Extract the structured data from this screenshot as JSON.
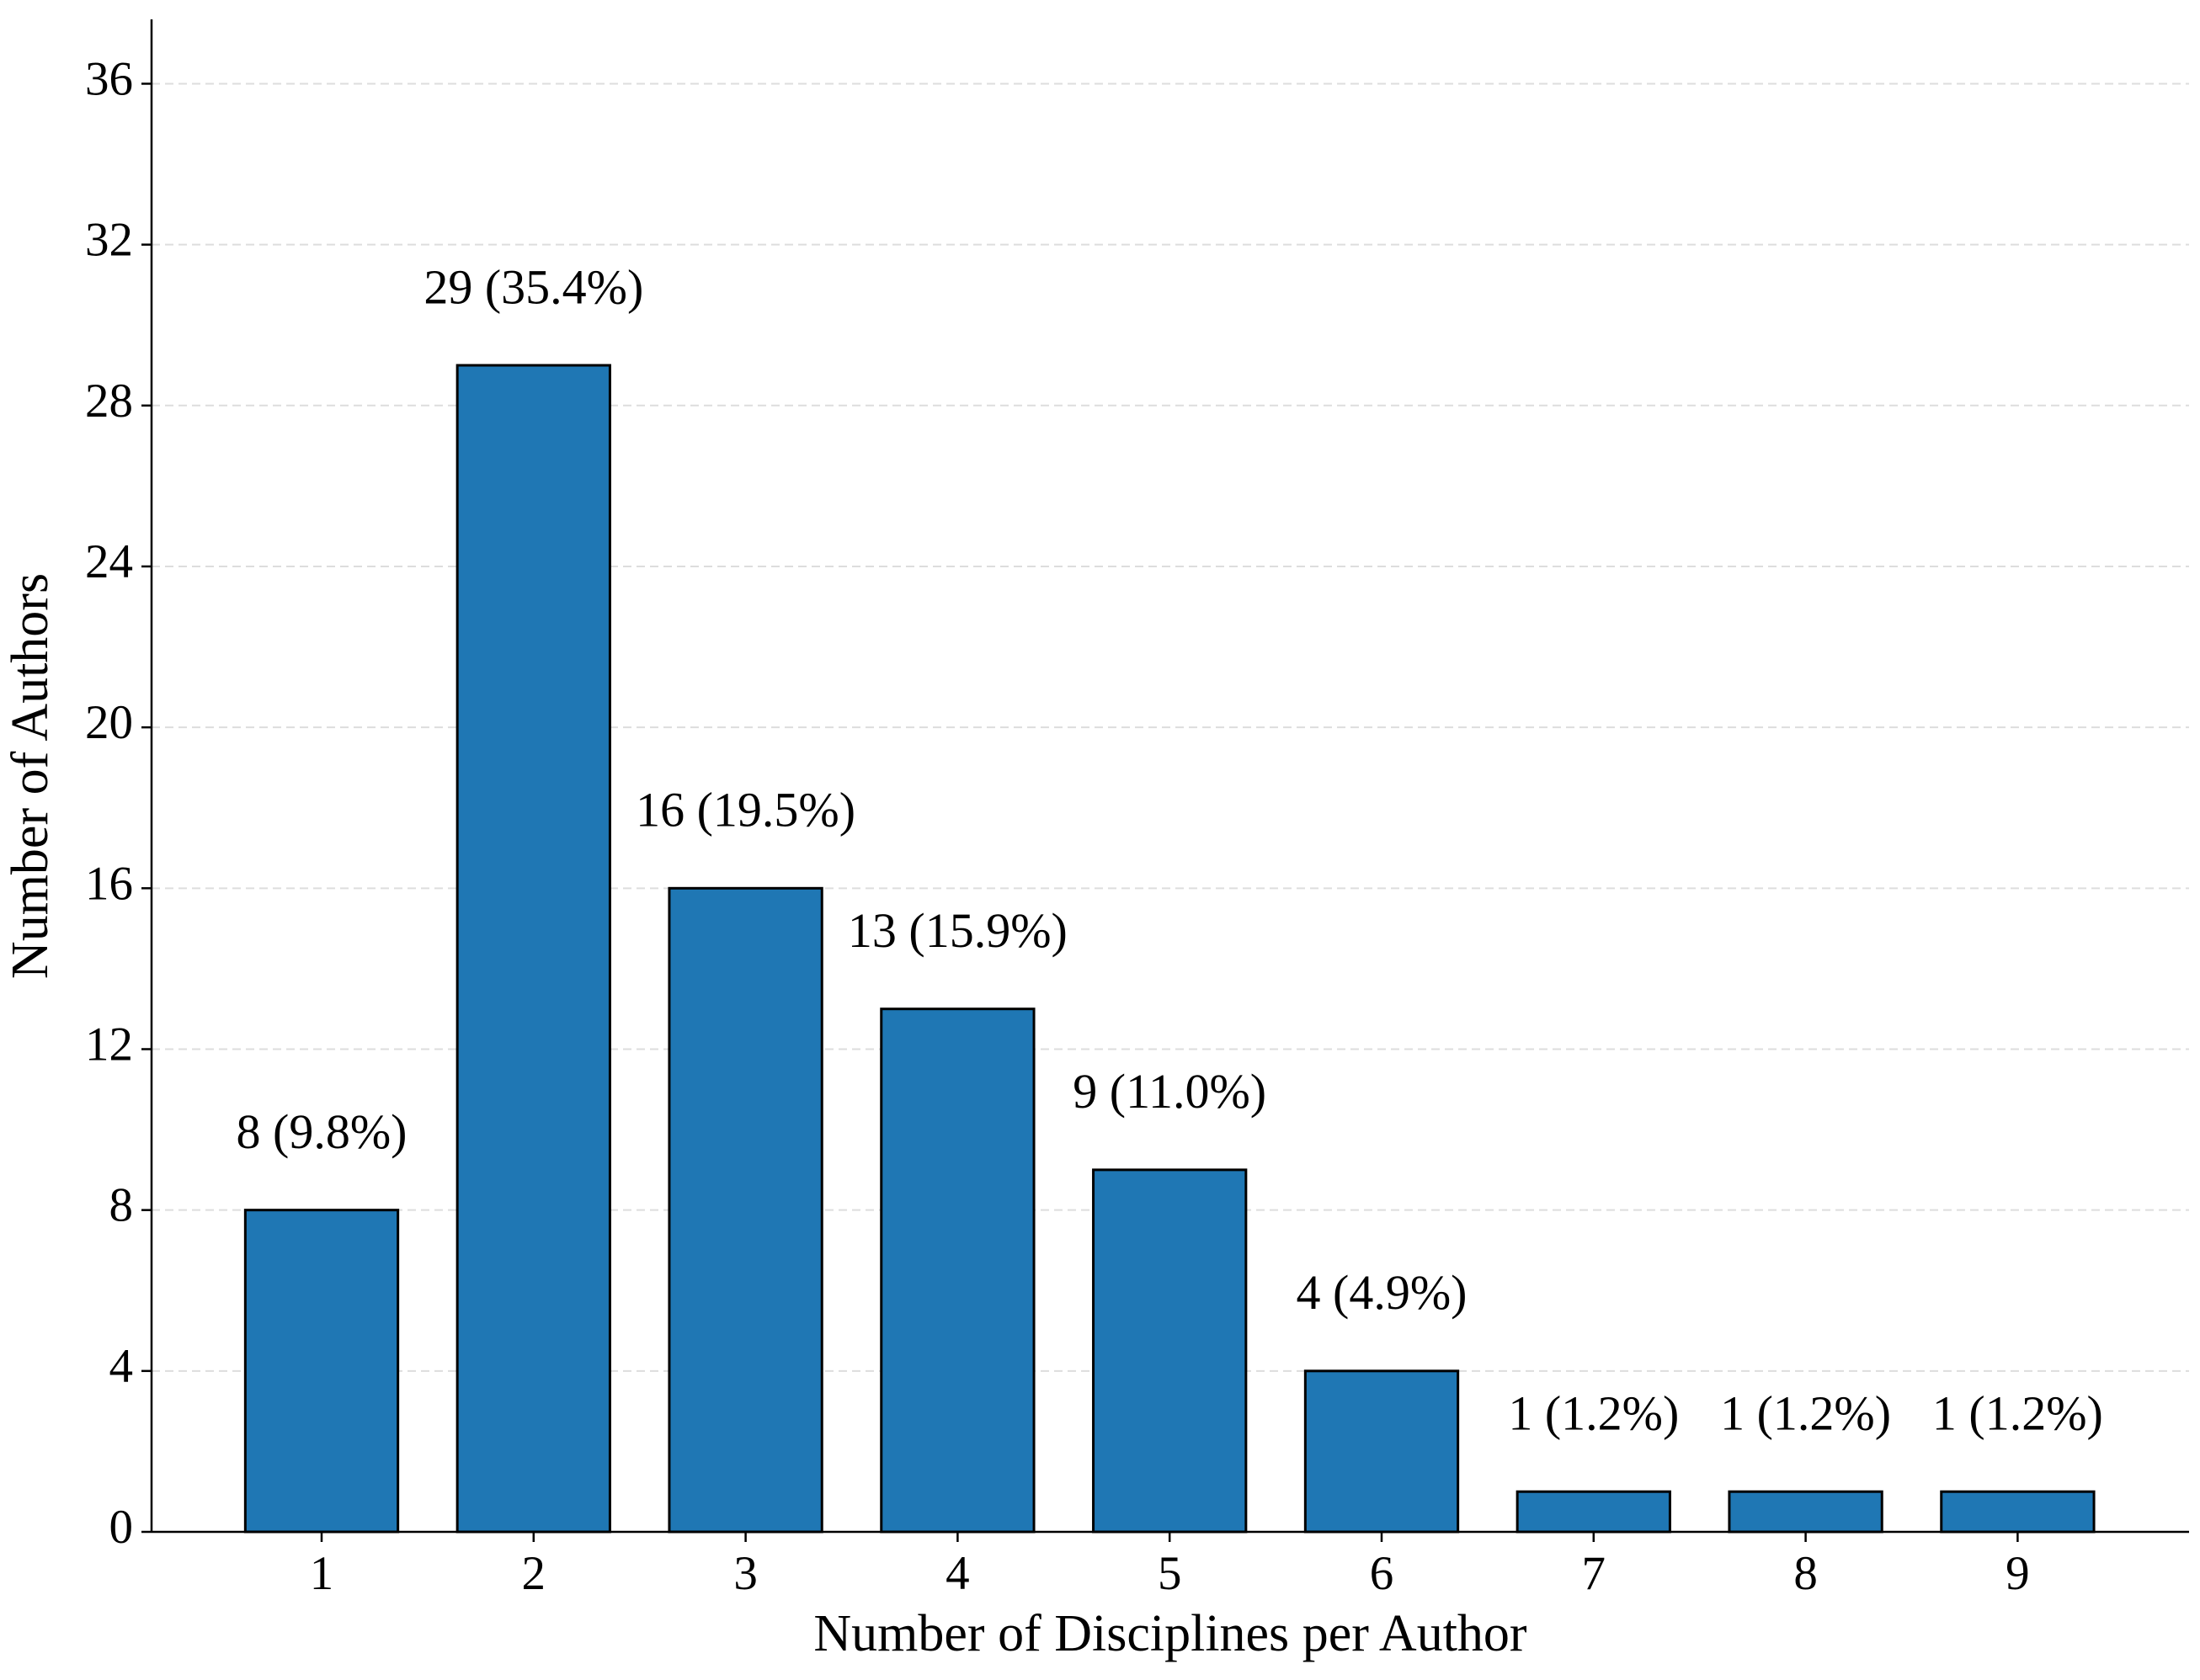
{
  "chart_data": {
    "type": "bar",
    "xlabel": "Number of Disciplines per Author",
    "ylabel": "Number of Authors",
    "categories": [
      "1",
      "2",
      "3",
      "4",
      "5",
      "6",
      "7",
      "8",
      "9"
    ],
    "values": [
      8,
      29,
      16,
      13,
      9,
      4,
      1,
      1,
      1
    ],
    "value_labels": [
      "8 (9.8%)",
      "29 (35.4%)",
      "16 (19.5%)",
      "13 (15.9%)",
      "9 (11.0%)",
      "4 (4.9%)",
      "1 (1.2%)",
      "1 (1.2%)",
      "1 (1.2%)"
    ],
    "color": "#1f77b4",
    "ylim": [
      0,
      37.6
    ],
    "yticks": [
      0,
      4,
      8,
      12,
      16,
      20,
      24,
      28,
      32,
      36
    ],
    "grid": true
  }
}
